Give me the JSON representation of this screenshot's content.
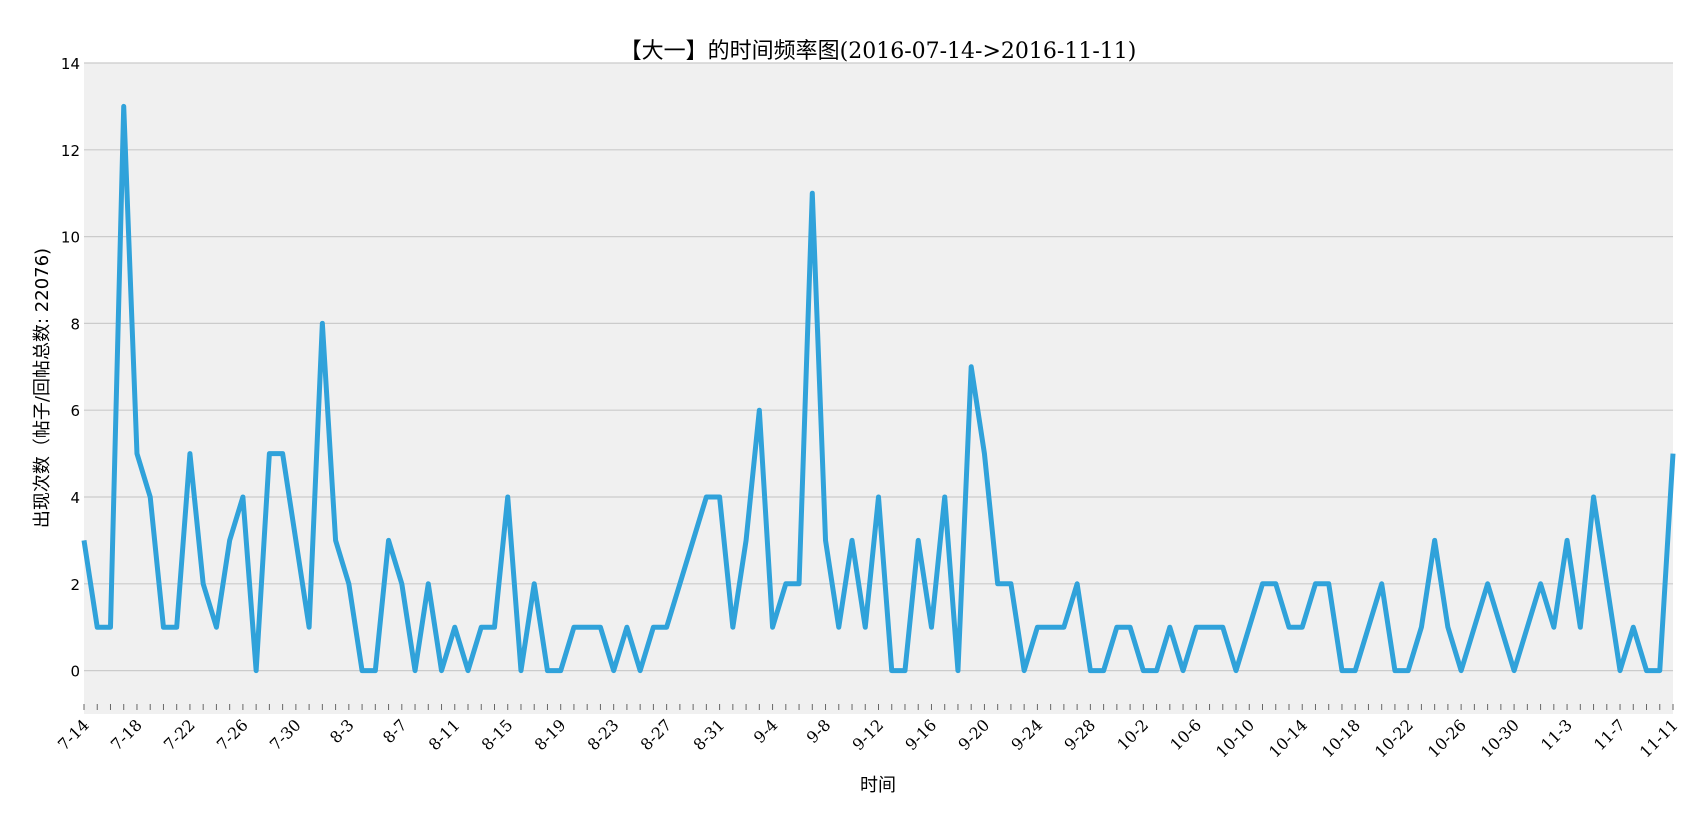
{
  "chart_data": {
    "type": "line",
    "title": "【大一】的时间频率图(2016-07-14->2016-11-11)",
    "xlabel": "时间",
    "ylabel": "出现次数（帖子/回帖总数: 22076)",
    "ylim": [
      -1,
      14
    ],
    "yticks": [
      0,
      2,
      4,
      6,
      8,
      10,
      12,
      14
    ],
    "grid": true,
    "x_start": "2016-07-14",
    "x_end": "2016-11-11",
    "xtick_labels": [
      "7-14",
      "7-18",
      "7-22",
      "7-26",
      "7-30",
      "8-3",
      "8-7",
      "8-11",
      "8-15",
      "8-19",
      "8-23",
      "8-27",
      "8-31",
      "9-4",
      "9-8",
      "9-12",
      "9-16",
      "9-20",
      "9-24",
      "9-28",
      "10-2",
      "10-6",
      "10-10",
      "10-14",
      "10-18",
      "10-22",
      "10-26",
      "10-30",
      "11-3",
      "11-7",
      "11-11"
    ],
    "colors": {
      "line": "#30a2da",
      "plot_bg": "#f0f0f0",
      "grid": "#cbcbcb"
    },
    "series": [
      {
        "values": [
          3,
          1,
          1,
          13,
          5,
          4,
          1,
          1,
          5,
          2,
          1,
          3,
          4,
          0,
          5,
          5,
          3,
          1,
          8,
          3,
          2,
          0,
          0,
          3,
          2,
          0,
          2,
          0,
          1,
          0,
          1,
          1,
          4,
          0,
          2,
          0,
          0,
          1,
          1,
          1,
          0,
          1,
          0,
          1,
          1,
          2,
          3,
          4,
          4,
          1,
          3,
          6,
          1,
          2,
          2,
          11,
          3,
          1,
          3,
          1,
          4,
          0,
          0,
          3,
          1,
          4,
          0,
          7,
          5,
          2,
          2,
          0,
          1,
          1,
          1,
          2,
          0,
          0,
          1,
          1,
          0,
          0,
          1,
          0,
          1,
          1,
          1,
          0,
          1,
          2,
          2,
          1,
          1,
          2,
          2,
          0,
          0,
          1,
          2,
          0,
          0,
          1,
          3,
          1,
          0,
          1,
          2,
          1,
          0,
          1,
          2,
          1,
          3,
          1,
          4,
          2,
          0,
          1,
          0,
          0,
          5
        ]
      }
    ]
  }
}
